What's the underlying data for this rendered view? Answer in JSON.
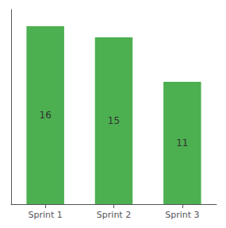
{
  "chart_data": {
    "type": "bar",
    "categories": [
      "Sprint 1",
      "Sprint 2",
      "Sprint 3"
    ],
    "values": [
      16,
      15,
      11
    ],
    "color": "#4CAF50",
    "ylim": [
      0,
      17.5
    ],
    "grid": false,
    "data_labels": true,
    "tick_labels": "x"
  }
}
